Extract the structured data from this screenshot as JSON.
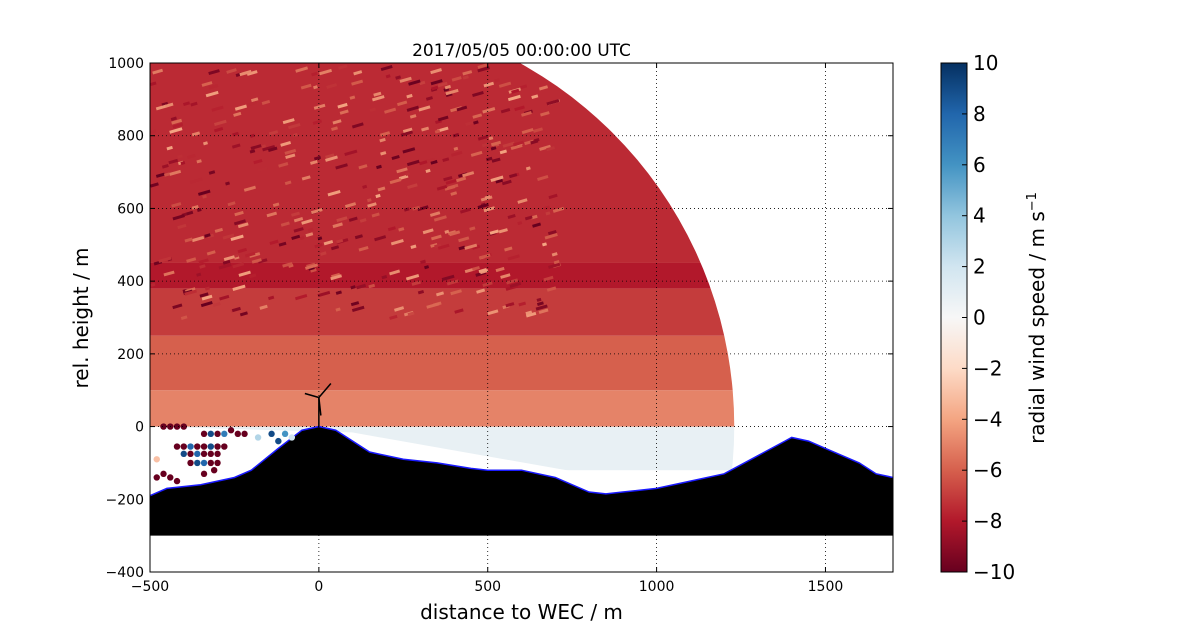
{
  "chart_data": {
    "type": "heatmap",
    "title": "2017/05/05 00:00:00 UTC",
    "xlabel": "distance to WEC / m",
    "ylabel": "rel. height / m",
    "xlim": [
      -500,
      1700
    ],
    "ylim": [
      -400,
      1000
    ],
    "xticks": [
      "−500",
      "0",
      "500",
      "1000",
      "1500"
    ],
    "yticks": [
      "−400",
      "−200",
      "0",
      "200",
      "400",
      "600",
      "800",
      "1000"
    ],
    "grid": true,
    "colorbar": {
      "label": "radial wind speed / m s",
      "label_superscript": "−1",
      "min": -10,
      "max": 10,
      "ticks": [
        "10",
        "8",
        "6",
        "4",
        "2",
        "0",
        "−2",
        "−4",
        "−6",
        "−8",
        "−10"
      ],
      "colormap": [
        "#67001f",
        "#b2182b",
        "#d6604d",
        "#f4a582",
        "#fddbc7",
        "#f7f7f7",
        "#d1e5f0",
        "#92c5de",
        "#4393c3",
        "#2166ac",
        "#053061"
      ]
    },
    "scan_sector": {
      "origin": [
        0,
        0
      ],
      "range_max": 1230,
      "range_min": 100,
      "elevation_deg": [
        -10,
        70
      ],
      "layers": [
        {
          "y": [
            -120,
            0
          ],
          "value": 0.8
        },
        {
          "y": [
            0,
            100
          ],
          "value": -5
        },
        {
          "y": [
            100,
            250
          ],
          "value": -6
        },
        {
          "y": [
            250,
            380
          ],
          "value": -7
        },
        {
          "y": [
            380,
            450
          ],
          "value": -8
        },
        {
          "y": [
            450,
            1000
          ],
          "value": -7.5
        }
      ]
    },
    "terrain": {
      "x": [
        -500,
        -450,
        -350,
        -250,
        -200,
        -120,
        -50,
        0,
        50,
        150,
        250,
        350,
        450,
        500,
        600,
        700,
        800,
        850,
        900,
        1000,
        1100,
        1200,
        1300,
        1380,
        1400,
        1450,
        1500,
        1550,
        1600,
        1650,
        1700
      ],
      "y": [
        -190,
        -170,
        -160,
        -140,
        -120,
        -60,
        -10,
        0,
        -10,
        -70,
        -90,
        -100,
        -115,
        -120,
        -120,
        -140,
        -180,
        -185,
        -180,
        -170,
        -150,
        -130,
        -80,
        -40,
        -30,
        -40,
        -60,
        -80,
        -100,
        -130,
        -140
      ],
      "base": -300,
      "fill": "#000000",
      "outline": "#1a1aff"
    },
    "turbine": {
      "x": 0,
      "hub_height": 80
    },
    "scatter_points": [
      {
        "x": -460,
        "y": 0,
        "value": -10
      },
      {
        "x": -440,
        "y": 0,
        "value": -10
      },
      {
        "x": -420,
        "y": 0,
        "value": -10
      },
      {
        "x": -400,
        "y": 0,
        "value": -10
      },
      {
        "x": -340,
        "y": -20,
        "value": -10
      },
      {
        "x": -320,
        "y": -20,
        "value": 9
      },
      {
        "x": -300,
        "y": -20,
        "value": -10
      },
      {
        "x": -280,
        "y": -20,
        "value": 7
      },
      {
        "x": -420,
        "y": -55,
        "value": -10
      },
      {
        "x": -400,
        "y": -55,
        "value": -10
      },
      {
        "x": -380,
        "y": -55,
        "value": 8
      },
      {
        "x": -360,
        "y": -55,
        "value": -10
      },
      {
        "x": -340,
        "y": -55,
        "value": -10
      },
      {
        "x": -320,
        "y": -55,
        "value": 9
      },
      {
        "x": -300,
        "y": -55,
        "value": -10
      },
      {
        "x": -280,
        "y": -55,
        "value": -10
      },
      {
        "x": -400,
        "y": -75,
        "value": 9
      },
      {
        "x": -380,
        "y": -75,
        "value": -10
      },
      {
        "x": -360,
        "y": -75,
        "value": 8
      },
      {
        "x": -340,
        "y": -75,
        "value": -10
      },
      {
        "x": -320,
        "y": -75,
        "value": -10
      },
      {
        "x": -300,
        "y": -75,
        "value": -10
      },
      {
        "x": -380,
        "y": -100,
        "value": -10
      },
      {
        "x": -360,
        "y": -100,
        "value": 9
      },
      {
        "x": -340,
        "y": -100,
        "value": 8
      },
      {
        "x": -320,
        "y": -100,
        "value": -10
      },
      {
        "x": -300,
        "y": -100,
        "value": -10
      },
      {
        "x": -480,
        "y": -90,
        "value": -3
      },
      {
        "x": -480,
        "y": -140,
        "value": -10
      },
      {
        "x": -460,
        "y": -130,
        "value": -10
      },
      {
        "x": -440,
        "y": -140,
        "value": -10
      },
      {
        "x": -420,
        "y": -150,
        "value": -10
      },
      {
        "x": -260,
        "y": -10,
        "value": -10
      },
      {
        "x": -240,
        "y": -20,
        "value": -10
      },
      {
        "x": -220,
        "y": -20,
        "value": -10
      },
      {
        "x": -180,
        "y": -30,
        "value": 3
      },
      {
        "x": -140,
        "y": -20,
        "value": 9
      },
      {
        "x": -120,
        "y": -40,
        "value": 9
      },
      {
        "x": -100,
        "y": -20,
        "value": 6
      },
      {
        "x": -80,
        "y": -30,
        "value": 2
      },
      {
        "x": -340,
        "y": -130,
        "value": -10
      },
      {
        "x": -310,
        "y": -120,
        "value": -10
      }
    ]
  }
}
